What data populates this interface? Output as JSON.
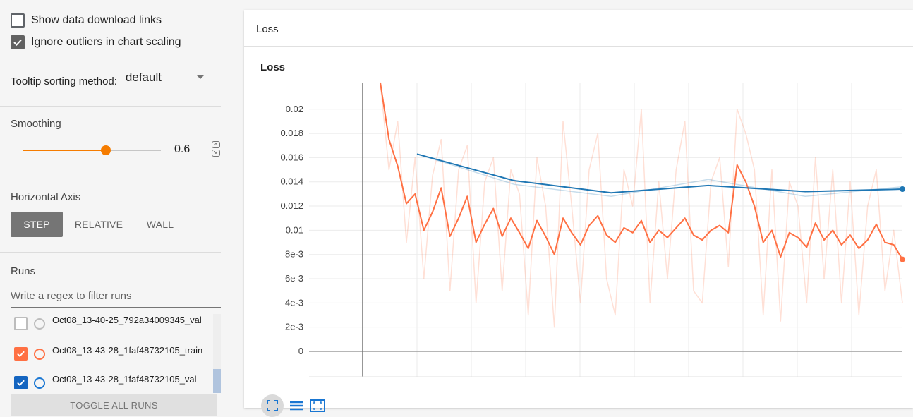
{
  "sidebar": {
    "show_download_links": {
      "label": "Show data download links",
      "checked": false
    },
    "ignore_outliers": {
      "label": "Ignore outliers in chart scaling",
      "checked": true
    },
    "tooltip_sorting": {
      "label": "Tooltip sorting method:",
      "value": "default"
    },
    "smoothing": {
      "title": "Smoothing",
      "value": "0.6",
      "fraction": 0.6
    },
    "horizontal_axis": {
      "title": "Horizontal Axis",
      "options": [
        "STEP",
        "RELATIVE",
        "WALL"
      ],
      "selected": "STEP"
    },
    "runs": {
      "title": "Runs",
      "filter_placeholder": "Write a regex to filter runs",
      "items": [
        {
          "name": "Oct08_13-40-25_792a34009345_val",
          "checked": false,
          "color": "#bdbdbd"
        },
        {
          "name": "Oct08_13-43-28_1faf48732105_train",
          "checked": true,
          "color": "#ff7043"
        },
        {
          "name": "Oct08_13-43-28_1faf48732105_val",
          "checked": true,
          "color": "#1976d2"
        }
      ],
      "toggle_all_label": "TOGGLE ALL RUNS"
    }
  },
  "card": {
    "header_title": "Loss"
  },
  "colors": {
    "accent": "#f57c00",
    "train": "#ff7043",
    "val": "#1f77b4"
  },
  "chart_data": {
    "type": "line",
    "title": "Loss",
    "xlabel": "",
    "ylabel": "",
    "ylim": [
      0,
      0.0222
    ],
    "y_ticks": [
      "0",
      "2e-3",
      "4e-3",
      "6e-3",
      "8e-3",
      "0.01",
      "0.012",
      "0.014",
      "0.016",
      "0.018",
      "0.02"
    ],
    "y_tick_values": [
      0,
      0.002,
      0.004,
      0.006,
      0.008,
      0.01,
      0.012,
      0.014,
      0.016,
      0.018,
      0.02
    ],
    "grid": true,
    "series": [
      {
        "run": "Oct08_13-43-28_1faf48732105_train",
        "smoothed_values": [
          0.0223,
          0.0175,
          0.0153,
          0.0122,
          0.013,
          0.01,
          0.0115,
          0.0135,
          0.0095,
          0.011,
          0.0128,
          0.009,
          0.0105,
          0.0118,
          0.0095,
          0.011,
          0.0098,
          0.0085,
          0.0108,
          0.0095,
          0.008,
          0.011,
          0.0098,
          0.0088,
          0.0104,
          0.0112,
          0.0096,
          0.009,
          0.0102,
          0.0098,
          0.0108,
          0.009,
          0.01,
          0.0094,
          0.0102,
          0.011,
          0.0096,
          0.0092,
          0.01,
          0.0104,
          0.0098,
          0.0154,
          0.014,
          0.012,
          0.009,
          0.01,
          0.0078,
          0.0098,
          0.0094,
          0.0086,
          0.0106,
          0.0092,
          0.01,
          0.0088,
          0.0096,
          0.0085,
          0.0092,
          0.0105,
          0.009,
          0.0088,
          0.0076
        ],
        "raw_values": [
          0.0223,
          0.015,
          0.019,
          0.009,
          0.016,
          0.006,
          0.0145,
          0.0175,
          0.005,
          0.015,
          0.017,
          0.004,
          0.014,
          0.016,
          0.005,
          0.015,
          0.013,
          0.003,
          0.016,
          0.012,
          0.002,
          0.019,
          0.012,
          0.004,
          0.015,
          0.018,
          0.006,
          0.003,
          0.015,
          0.012,
          0.02,
          0.004,
          0.014,
          0.006,
          0.015,
          0.019,
          0.005,
          0.004,
          0.014,
          0.016,
          0.007,
          0.02,
          0.018,
          0.015,
          0.003,
          0.015,
          0.0025,
          0.014,
          0.012,
          0.004,
          0.016,
          0.006,
          0.015,
          0.004,
          0.014,
          0.003,
          0.012,
          0.015,
          0.005,
          0.01,
          0.004
        ]
      },
      {
        "run": "Oct08_13-43-28_1faf48732105_val",
        "smoothed_values": [
          0.0163,
          0.0141,
          0.0131,
          0.0137,
          0.0132,
          0.0134
        ],
        "raw_values": [
          0.0163,
          0.0138,
          0.0128,
          0.0142,
          0.0128,
          0.0136
        ]
      }
    ]
  }
}
